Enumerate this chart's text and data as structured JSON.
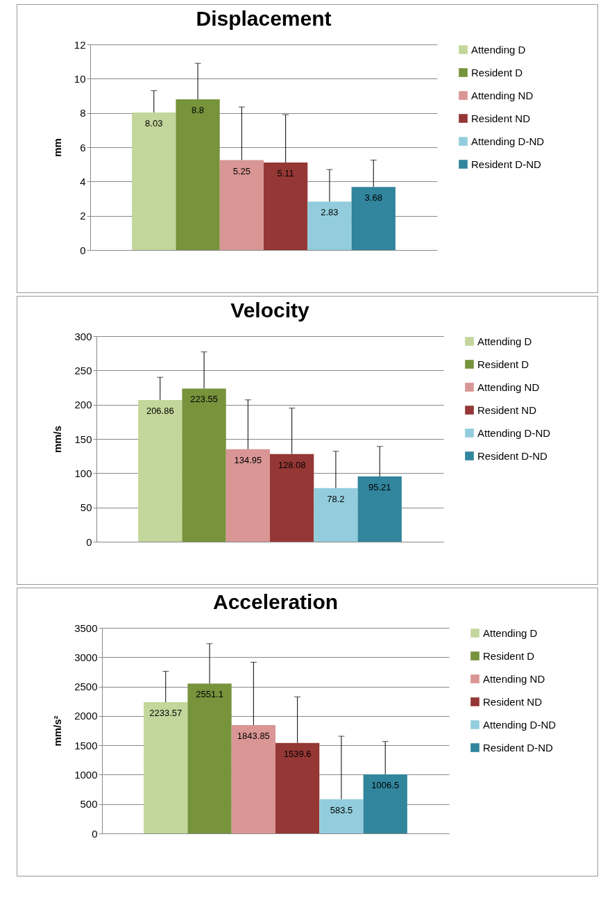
{
  "chart_data": [
    {
      "type": "bar",
      "title": "Displacement",
      "ylabel": "mm",
      "categories": [
        null
      ],
      "ylim": [
        0,
        12
      ],
      "yticks": [
        0,
        2,
        4,
        6,
        8,
        10,
        12
      ],
      "grid": "y",
      "legend": "right",
      "data_labels": true,
      "series": [
        {
          "name": "Attending D",
          "color": "#c3d69b",
          "values": [
            8.03
          ],
          "errors": [
            [
              8.03,
              9.3
            ]
          ]
        },
        {
          "name": "Resident D",
          "color": "#77933c",
          "values": [
            8.8
          ],
          "errors": [
            [
              8.8,
              10.9
            ]
          ]
        },
        {
          "name": "Attending ND",
          "color": "#d99694",
          "values": [
            5.25
          ],
          "errors": [
            [
              5.25,
              8.35
            ]
          ]
        },
        {
          "name": "Resident ND",
          "color": "#953735",
          "values": [
            5.11
          ],
          "errors": [
            [
              5.11,
              7.9
            ]
          ]
        },
        {
          "name": "Attending D-ND",
          "color": "#93cddd",
          "values": [
            2.83
          ],
          "errors": [
            [
              2.83,
              4.7
            ]
          ]
        },
        {
          "name": "Resident D-ND",
          "color": "#31859c",
          "values": [
            3.68
          ],
          "errors": [
            [
              3.68,
              5.25
            ]
          ]
        }
      ]
    },
    {
      "type": "bar",
      "title": "Velocity",
      "ylabel": "mm/s",
      "categories": [
        null
      ],
      "ylim": [
        0,
        300
      ],
      "yticks": [
        0,
        50,
        100,
        150,
        200,
        250,
        300
      ],
      "grid": "y",
      "legend": "right",
      "data_labels": true,
      "series": [
        {
          "name": "Attending D",
          "color": "#c3d69b",
          "values": [
            206.86
          ],
          "errors": [
            [
              206.86,
              240
            ]
          ]
        },
        {
          "name": "Resident D",
          "color": "#77933c",
          "values": [
            223.55
          ],
          "errors": [
            [
              223.55,
              277
            ]
          ]
        },
        {
          "name": "Attending ND",
          "color": "#d99694",
          "values": [
            134.95
          ],
          "errors": [
            [
              134.95,
              207
            ]
          ]
        },
        {
          "name": "Resident ND",
          "color": "#953735",
          "values": [
            128.08
          ],
          "errors": [
            [
              128.08,
              195
            ]
          ]
        },
        {
          "name": "Attending D-ND",
          "color": "#93cddd",
          "values": [
            78.2
          ],
          "errors": [
            [
              78.2,
              132
            ]
          ]
        },
        {
          "name": "Resident D-ND",
          "color": "#31859c",
          "values": [
            95.21
          ],
          "errors": [
            [
              95.21,
              139
            ]
          ]
        }
      ]
    },
    {
      "type": "bar",
      "title": "Acceleration",
      "ylabel": "mm/s²",
      "categories": [
        null
      ],
      "ylim": [
        0,
        3500
      ],
      "yticks": [
        0,
        500,
        1000,
        1500,
        2000,
        2500,
        3000,
        3500
      ],
      "grid": "y",
      "legend": "right",
      "data_labels": true,
      "series": [
        {
          "name": "Attending D",
          "color": "#c3d69b",
          "values": [
            2233.57
          ],
          "errors": [
            [
              2233.57,
              2760
            ]
          ]
        },
        {
          "name": "Resident D",
          "color": "#77933c",
          "values": [
            2551.1
          ],
          "errors": [
            [
              2551.1,
              3230
            ]
          ]
        },
        {
          "name": "Attending ND",
          "color": "#d99694",
          "values": [
            1843.85
          ],
          "errors": [
            [
              1843.85,
              2915
            ]
          ]
        },
        {
          "name": "Resident ND",
          "color": "#953735",
          "values": [
            1539.6
          ],
          "errors": [
            [
              1539.6,
              2325
            ]
          ]
        },
        {
          "name": "Attending D-ND",
          "color": "#93cddd",
          "values": [
            583.5
          ],
          "errors": [
            [
              583.5,
              1655
            ]
          ]
        },
        {
          "name": "Resident D-ND",
          "color": "#31859c",
          "values": [
            1006.5
          ],
          "errors": [
            [
              1006.5,
              1565
            ]
          ]
        }
      ]
    }
  ]
}
